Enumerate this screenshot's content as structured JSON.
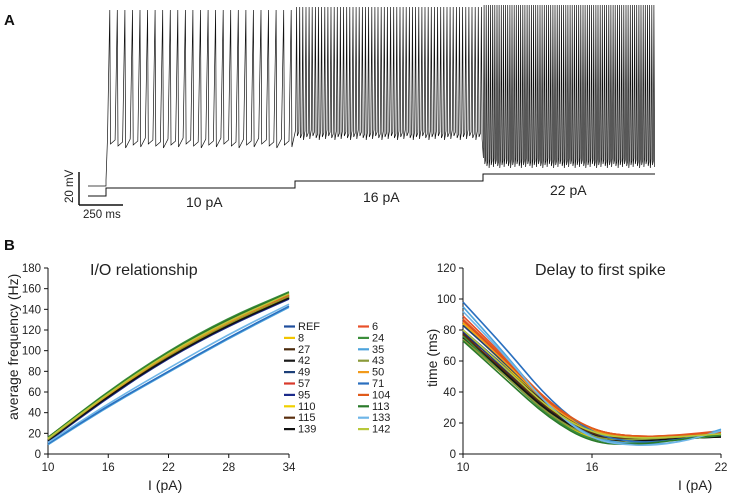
{
  "figure": {
    "panel_a_label": "A",
    "panel_b_label": "B",
    "voltage_scale_label": "20 mV",
    "time_scale_label": "250 ms"
  },
  "traces": {
    "steps": [
      {
        "label": "10 pA",
        "spike_count": 25
      },
      {
        "label": "16 pA",
        "spike_count": 60
      },
      {
        "label": "22 pA",
        "spike_count": 80
      }
    ]
  },
  "chart_data": [
    {
      "type": "line",
      "title": "I/O relationship",
      "xlabel": "I (pA)",
      "ylabel": "average frequency (Hz)",
      "xlim": [
        10,
        34
      ],
      "ylim": [
        0,
        180
      ],
      "xticks": [
        10,
        16,
        22,
        28,
        34
      ],
      "yticks": [
        0,
        20,
        40,
        60,
        80,
        100,
        120,
        140,
        160,
        180
      ],
      "x": [
        10,
        16,
        22,
        28,
        34
      ],
      "series": [
        {
          "name": "REF",
          "color": "#1f4e9c",
          "values": [
            13,
            57,
            95,
            126,
            152
          ]
        },
        {
          "name": "8",
          "color": "#f2c500",
          "values": [
            15,
            58,
            96,
            127,
            153
          ]
        },
        {
          "name": "27",
          "color": "#4a2a0c",
          "values": [
            14,
            57,
            95,
            126,
            152
          ]
        },
        {
          "name": "42",
          "color": "#1a1a1a",
          "values": [
            13,
            56,
            94,
            125,
            151
          ]
        },
        {
          "name": "49",
          "color": "#1c3f78",
          "values": [
            13,
            56,
            94,
            125,
            151
          ]
        },
        {
          "name": "57",
          "color": "#d93a2b",
          "values": [
            15,
            59,
            98,
            129,
            154
          ]
        },
        {
          "name": "95",
          "color": "#1b2a8a",
          "values": [
            12,
            55,
            93,
            124,
            150
          ]
        },
        {
          "name": "110",
          "color": "#f0d000",
          "values": [
            14,
            57,
            95,
            126,
            152
          ]
        },
        {
          "name": "115",
          "color": "#5a2e0e",
          "values": [
            14,
            57,
            96,
            127,
            153
          ]
        },
        {
          "name": "139",
          "color": "#111111",
          "values": [
            13,
            56,
            94,
            125,
            151
          ]
        },
        {
          "name": "6",
          "color": "#e8502a",
          "values": [
            16,
            60,
            99,
            130,
            155
          ]
        },
        {
          "name": "24",
          "color": "#3b8e3b",
          "values": [
            16,
            61,
            100,
            132,
            157
          ]
        },
        {
          "name": "35",
          "color": "#4da3dc",
          "values": [
            9,
            46,
            79,
            112,
            142
          ]
        },
        {
          "name": "43",
          "color": "#8a9a3a",
          "values": [
            14,
            58,
            96,
            127,
            153
          ]
        },
        {
          "name": "50",
          "color": "#f29a1a",
          "values": [
            15,
            58,
            97,
            128,
            154
          ]
        },
        {
          "name": "71",
          "color": "#2a6fbf",
          "values": [
            10,
            47,
            80,
            113,
            143
          ]
        },
        {
          "name": "104",
          "color": "#e05a1a",
          "values": [
            15,
            59,
            98,
            129,
            154
          ]
        },
        {
          "name": "113",
          "color": "#2a7a2a",
          "values": [
            16,
            60,
            99,
            131,
            156
          ]
        },
        {
          "name": "133",
          "color": "#6fb6e8",
          "values": [
            11,
            49,
            83,
            116,
            145
          ]
        },
        {
          "name": "142",
          "color": "#b8c83a",
          "values": [
            15,
            59,
            98,
            129,
            155
          ]
        }
      ],
      "legend_columns": [
        [
          "REF",
          "8",
          "27",
          "42",
          "49",
          "57",
          "95",
          "110",
          "115",
          "139"
        ],
        [
          "6",
          "24",
          "35",
          "43",
          "50",
          "71",
          "104",
          "113",
          "133",
          "142"
        ]
      ]
    },
    {
      "type": "line",
      "title": "Delay to first spike",
      "xlabel": "I (pA)",
      "ylabel": "time (ms)",
      "xlim": [
        10,
        22
      ],
      "ylim": [
        0,
        120
      ],
      "xticks": [
        10,
        16,
        22
      ],
      "yticks": [
        0,
        20,
        40,
        60,
        80,
        100,
        120
      ],
      "x": [
        10,
        12,
        14,
        16,
        18,
        20,
        22
      ],
      "series": [
        {
          "name": "REF",
          "color": "#1f4e9c",
          "values": [
            80,
            56,
            30,
            13,
            9,
            10,
            12
          ]
        },
        {
          "name": "8",
          "color": "#f2c500",
          "values": [
            84,
            57,
            29,
            11,
            8,
            10,
            13
          ]
        },
        {
          "name": "27",
          "color": "#4a2a0c",
          "values": [
            78,
            55,
            30,
            14,
            10,
            11,
            12
          ]
        },
        {
          "name": "42",
          "color": "#1a1a1a",
          "values": [
            76,
            52,
            27,
            11,
            8,
            10,
            11
          ]
        },
        {
          "name": "49",
          "color": "#1c3f78",
          "values": [
            83,
            58,
            31,
            14,
            10,
            11,
            12
          ]
        },
        {
          "name": "57",
          "color": "#d93a2b",
          "values": [
            86,
            60,
            32,
            15,
            11,
            12,
            13
          ]
        },
        {
          "name": "95",
          "color": "#1b2a8a",
          "values": [
            79,
            54,
            28,
            12,
            9,
            10,
            12
          ]
        },
        {
          "name": "110",
          "color": "#f0d000",
          "values": [
            74,
            50,
            25,
            9,
            8,
            10,
            14
          ]
        },
        {
          "name": "115",
          "color": "#5a2e0e",
          "values": [
            77,
            53,
            28,
            12,
            9,
            11,
            13
          ]
        },
        {
          "name": "139",
          "color": "#111111",
          "values": [
            75,
            51,
            26,
            10,
            8,
            10,
            11
          ]
        },
        {
          "name": "6",
          "color": "#e8502a",
          "values": [
            89,
            62,
            33,
            15,
            11,
            12,
            15
          ]
        },
        {
          "name": "24",
          "color": "#3b8e3b",
          "values": [
            76,
            50,
            24,
            8,
            7,
            9,
            12
          ]
        },
        {
          "name": "35",
          "color": "#4da3dc",
          "values": [
            95,
            64,
            30,
            10,
            6,
            7,
            16
          ]
        },
        {
          "name": "43",
          "color": "#8a9a3a",
          "values": [
            74,
            50,
            25,
            10,
            9,
            11,
            13
          ]
        },
        {
          "name": "50",
          "color": "#f29a1a",
          "values": [
            85,
            59,
            31,
            14,
            10,
            12,
            13
          ]
        },
        {
          "name": "71",
          "color": "#2a6fbf",
          "values": [
            98,
            68,
            35,
            13,
            7,
            9,
            14
          ]
        },
        {
          "name": "104",
          "color": "#e05a1a",
          "values": [
            87,
            61,
            33,
            15,
            11,
            12,
            14
          ]
        },
        {
          "name": "113",
          "color": "#2a7a2a",
          "values": [
            73,
            48,
            23,
            7,
            6,
            9,
            13
          ]
        },
        {
          "name": "133",
          "color": "#6fb6e8",
          "values": [
            92,
            63,
            30,
            9,
            5,
            7,
            15
          ]
        },
        {
          "name": "142",
          "color": "#b8c83a",
          "values": [
            80,
            55,
            29,
            13,
            10,
            11,
            13
          ]
        }
      ]
    }
  ]
}
